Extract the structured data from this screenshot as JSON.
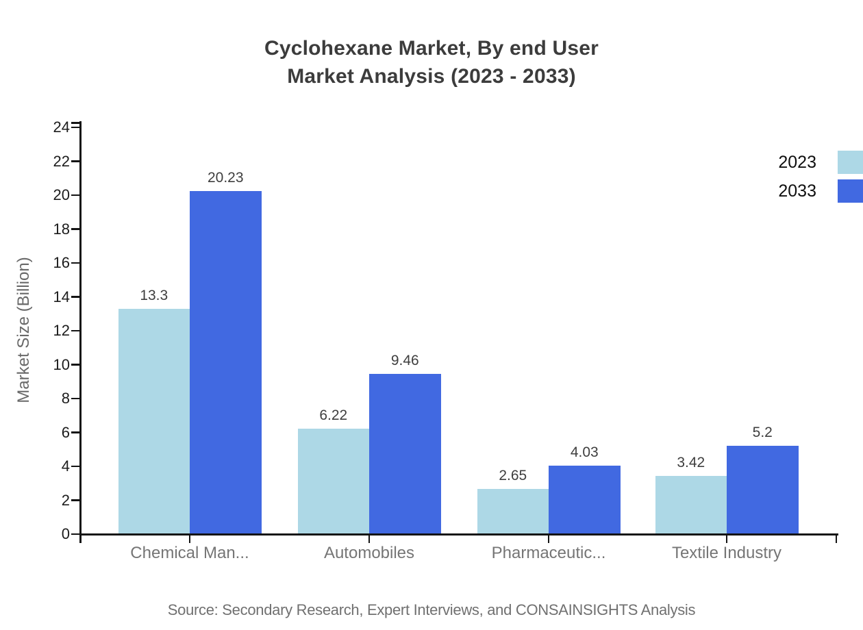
{
  "chart_data": {
    "type": "bar",
    "title_line1": "Cyclohexane Market, By end User",
    "title_line2": "Market Analysis (2023 - 2033)",
    "categories": [
      "Chemical Man...",
      "Automobiles",
      "Pharmaceutic...",
      "Textile Industry"
    ],
    "series": [
      {
        "name": "2023",
        "color": "#ADD8E6",
        "values": [
          13.3,
          6.22,
          2.65,
          3.42
        ]
      },
      {
        "name": "2033",
        "color": "#4169E1",
        "values": [
          20.23,
          9.46,
          4.03,
          5.2
        ]
      }
    ],
    "xlabel": "",
    "ylabel": "Market Size (Billion)",
    "ylim": [
      0,
      24
    ],
    "ytick_step": 2,
    "grid": false,
    "legend_position": "top-right",
    "axis_color": "#141414",
    "source": "Source: Secondary Research, Expert Interviews, and CONSAINSIGHTS Analysis"
  }
}
